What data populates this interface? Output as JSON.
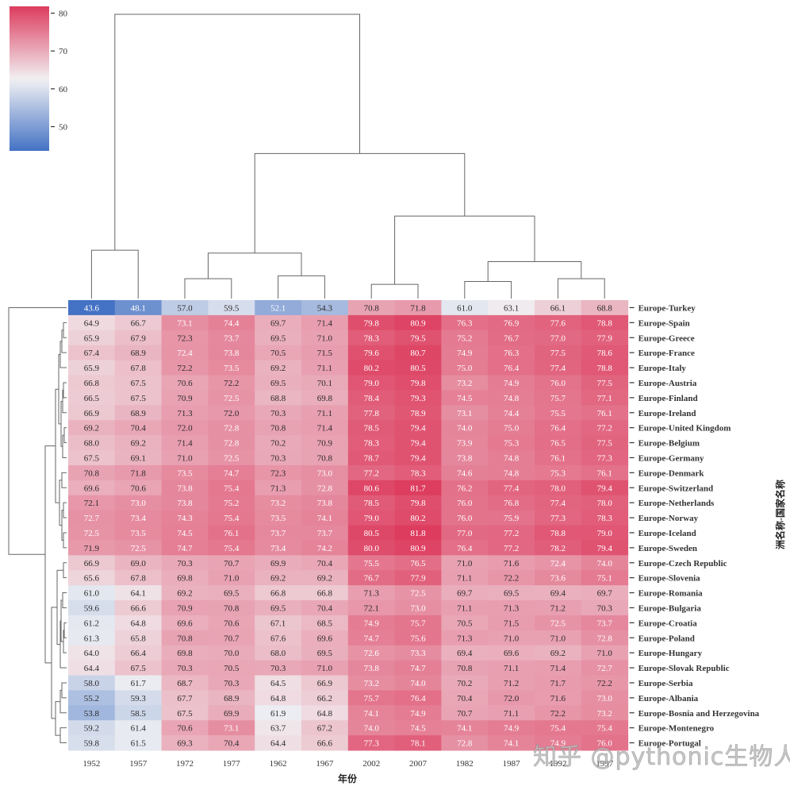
{
  "watermark": "知乎 @pythonic生物人",
  "chart_data": {
    "type": "heatmap",
    "subtype": "clustermap",
    "title": "",
    "xlabel": "年份",
    "ylabel": "洲名称-国家名称",
    "columns": [
      "1952",
      "1957",
      "1972",
      "1977",
      "1962",
      "1967",
      "2002",
      "2007",
      "1982",
      "1987",
      "1992",
      "1997"
    ],
    "rows": [
      "Europe-Turkey",
      "Europe-Spain",
      "Europe-Greece",
      "Europe-France",
      "Europe-Italy",
      "Europe-Austria",
      "Europe-Finland",
      "Europe-Ireland",
      "Europe-United Kingdom",
      "Europe-Belgium",
      "Europe-Germany",
      "Europe-Denmark",
      "Europe-Switzerland",
      "Europe-Netherlands",
      "Europe-Norway",
      "Europe-Iceland",
      "Europe-Sweden",
      "Europe-Czech Republic",
      "Europe-Slovenia",
      "Europe-Romania",
      "Europe-Bulgaria",
      "Europe-Croatia",
      "Europe-Poland",
      "Europe-Hungary",
      "Europe-Slovak Republic",
      "Europe-Serbia",
      "Europe-Albania",
      "Europe-Bosnia and Herzegovina",
      "Europe-Montenegro",
      "Europe-Portugal"
    ],
    "values": [
      [
        43.6,
        48.1,
        57.0,
        59.5,
        52.1,
        54.3,
        70.8,
        71.8,
        61.0,
        63.1,
        66.1,
        68.8
      ],
      [
        64.9,
        66.7,
        73.1,
        74.4,
        69.7,
        71.4,
        79.8,
        80.9,
        76.3,
        76.9,
        77.6,
        78.8
      ],
      [
        65.9,
        67.9,
        72.3,
        73.7,
        69.5,
        71.0,
        78.3,
        79.5,
        75.2,
        76.7,
        77.0,
        77.9
      ],
      [
        67.4,
        68.9,
        72.4,
        73.8,
        70.5,
        71.5,
        79.6,
        80.7,
        74.9,
        76.3,
        77.5,
        78.6
      ],
      [
        65.9,
        67.8,
        72.2,
        73.5,
        69.2,
        71.1,
        80.2,
        80.5,
        75.0,
        76.4,
        77.4,
        78.8
      ],
      [
        66.8,
        67.5,
        70.6,
        72.2,
        69.5,
        70.1,
        79.0,
        79.8,
        73.2,
        74.9,
        76.0,
        77.5
      ],
      [
        66.5,
        67.5,
        70.9,
        72.5,
        68.8,
        69.8,
        78.4,
        79.3,
        74.5,
        74.8,
        75.7,
        77.1
      ],
      [
        66.9,
        68.9,
        71.3,
        72.0,
        70.3,
        71.1,
        77.8,
        78.9,
        73.1,
        74.4,
        75.5,
        76.1
      ],
      [
        69.2,
        70.4,
        72.0,
        72.8,
        70.8,
        71.4,
        78.5,
        79.4,
        74.0,
        75.0,
        76.4,
        77.2
      ],
      [
        68.0,
        69.2,
        71.4,
        72.8,
        70.2,
        70.9,
        78.3,
        79.4,
        73.9,
        75.3,
        76.5,
        77.5
      ],
      [
        67.5,
        69.1,
        71.0,
        72.5,
        70.3,
        70.8,
        78.7,
        79.4,
        73.8,
        74.8,
        76.1,
        77.3
      ],
      [
        70.8,
        71.8,
        73.5,
        74.7,
        72.3,
        73.0,
        77.2,
        78.3,
        74.6,
        74.8,
        75.3,
        76.1
      ],
      [
        69.6,
        70.6,
        73.8,
        75.4,
        71.3,
        72.8,
        80.6,
        81.7,
        76.2,
        77.4,
        78.0,
        79.4
      ],
      [
        72.1,
        73.0,
        73.8,
        75.2,
        73.2,
        73.8,
        78.5,
        79.8,
        76.0,
        76.8,
        77.4,
        78.0
      ],
      [
        72.7,
        73.4,
        74.3,
        75.4,
        73.5,
        74.1,
        79.0,
        80.2,
        76.0,
        75.9,
        77.3,
        78.3
      ],
      [
        72.5,
        73.5,
        74.5,
        76.1,
        73.7,
        73.7,
        80.5,
        81.8,
        77.0,
        77.2,
        78.8,
        79.0
      ],
      [
        71.9,
        72.5,
        74.7,
        75.4,
        73.4,
        74.2,
        80.0,
        80.9,
        76.4,
        77.2,
        78.2,
        79.4
      ],
      [
        66.9,
        69.0,
        70.3,
        70.7,
        69.9,
        70.4,
        75.5,
        76.5,
        71.0,
        71.6,
        72.4,
        74.0
      ],
      [
        65.6,
        67.8,
        69.8,
        71.0,
        69.2,
        69.2,
        76.7,
        77.9,
        71.1,
        72.2,
        73.6,
        75.1
      ],
      [
        61.0,
        64.1,
        69.2,
        69.5,
        66.8,
        66.8,
        71.3,
        72.5,
        69.7,
        69.5,
        69.4,
        69.7
      ],
      [
        59.6,
        66.6,
        70.9,
        70.8,
        69.5,
        70.4,
        72.1,
        73.0,
        71.1,
        71.3,
        71.2,
        70.3
      ],
      [
        61.2,
        64.8,
        69.6,
        70.6,
        67.1,
        68.5,
        74.9,
        75.7,
        70.5,
        71.5,
        72.5,
        73.7
      ],
      [
        61.3,
        65.8,
        70.8,
        70.7,
        67.6,
        69.6,
        74.7,
        75.6,
        71.3,
        71.0,
        71.0,
        72.8
      ],
      [
        64.0,
        66.4,
        69.8,
        70.0,
        68.0,
        69.5,
        72.6,
        73.3,
        69.4,
        69.6,
        69.2,
        71.0
      ],
      [
        64.4,
        67.5,
        70.3,
        70.5,
        70.3,
        71.0,
        73.8,
        74.7,
        70.8,
        71.1,
        71.4,
        72.7
      ],
      [
        58.0,
        61.7,
        68.7,
        70.3,
        64.5,
        66.9,
        73.2,
        74.0,
        70.2,
        71.2,
        71.7,
        72.2
      ],
      [
        55.2,
        59.3,
        67.7,
        68.9,
        64.8,
        66.2,
        75.7,
        76.4,
        70.4,
        72.0,
        71.6,
        73.0
      ],
      [
        53.8,
        58.5,
        67.5,
        69.9,
        61.9,
        64.8,
        74.1,
        74.9,
        70.7,
        71.1,
        72.2,
        73.2
      ],
      [
        59.2,
        61.4,
        70.6,
        73.1,
        63.7,
        67.2,
        74.0,
        74.5,
        74.1,
        74.9,
        75.4,
        75.4
      ],
      [
        59.8,
        61.5,
        69.3,
        70.4,
        64.4,
        66.6,
        77.3,
        78.1,
        72.8,
        74.1,
        74.9,
        76.0
      ]
    ],
    "annotation_format": "0.1f",
    "colorbar": {
      "range": [
        43.6,
        81.8
      ],
      "ticks": [
        50,
        60,
        70,
        80
      ],
      "colormap": "diverging blue-white-red",
      "low_color": "#4472c4",
      "mid_color": "#f1f1f3",
      "high_color": "#dd3c5e",
      "center": 62.5,
      "placement": "top-left"
    },
    "col_dendrogram": {
      "placement": "top",
      "merges": [
        {
          "left": "1952",
          "right": "1957",
          "height": 0.17
        },
        {
          "left": "1972",
          "right": "1977",
          "height": 0.07
        },
        {
          "left": "1962",
          "right": "1967",
          "height": 0.08
        },
        {
          "left": "2002",
          "right": "2007",
          "height": 0.05
        },
        {
          "left": "1982",
          "right": "1987",
          "height": 0.06
        },
        {
          "left": "1992",
          "right": "1997",
          "height": 0.07
        },
        {
          "left": "1972|1977",
          "right": "1962|1967",
          "height": 0.16
        },
        {
          "left": "1982|1987",
          "right": "1992|1997",
          "height": 0.13
        },
        {
          "left": "2002|2007",
          "right": "1982|1987|1992|1997",
          "height": 0.29
        },
        {
          "left": "1972|1977|1962|1967",
          "right": "2002|2007|1982|1987|1992|1997",
          "height": 0.51
        },
        {
          "left": "1952|1957",
          "right": "rest",
          "height": 1.0
        }
      ]
    },
    "row_dendrogram": {
      "placement": "left",
      "note": "Turkey splits first from all other countries"
    },
    "grid": false,
    "legend": "none"
  }
}
